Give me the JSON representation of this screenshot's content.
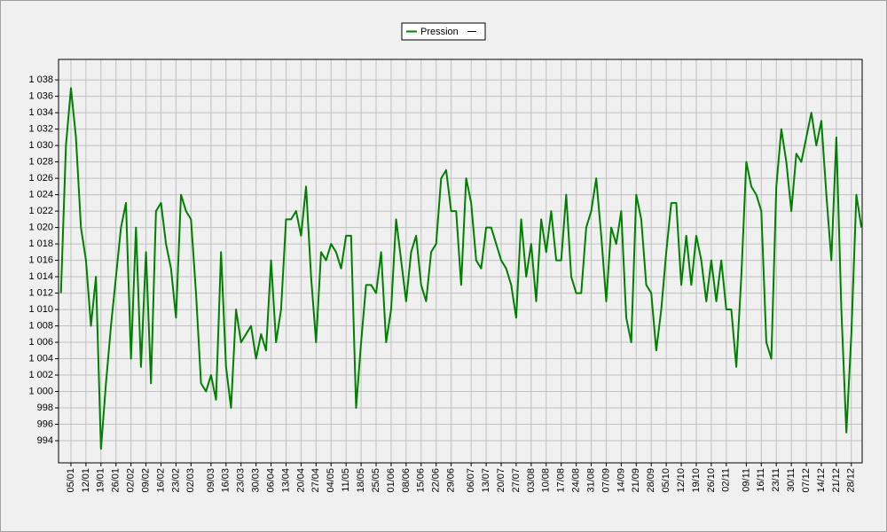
{
  "chart_data": {
    "type": "line",
    "categories": [
      null,
      null,
      "05/01",
      null,
      null,
      "12/01",
      null,
      null,
      "19/01",
      null,
      null,
      "26/01",
      null,
      null,
      "02/02",
      null,
      null,
      "09/02",
      null,
      null,
      "16/02",
      null,
      null,
      "23/02",
      null,
      null,
      "02/03",
      null,
      null,
      null,
      "09/03",
      null,
      null,
      "16/03",
      null,
      null,
      "23/03",
      null,
      null,
      "30/03",
      null,
      null,
      "06/04",
      null,
      null,
      "13/04",
      null,
      null,
      "20/04",
      null,
      null,
      "27/04",
      null,
      null,
      "04/05",
      null,
      null,
      "11/05",
      null,
      null,
      "18/05",
      null,
      null,
      "25/05",
      null,
      null,
      "01/06",
      null,
      null,
      "08/06",
      null,
      null,
      "15/06",
      null,
      null,
      "22/06",
      null,
      null,
      "29/06",
      null,
      null,
      null,
      "06/07",
      null,
      null,
      "13/07",
      null,
      null,
      "20/07",
      null,
      null,
      "27/07",
      null,
      null,
      "03/08",
      null,
      null,
      "10/08",
      null,
      null,
      "17/08",
      null,
      null,
      "24/08",
      null,
      null,
      "31/08",
      null,
      null,
      "07/09",
      null,
      null,
      "14/09",
      null,
      null,
      "21/09",
      null,
      null,
      "28/09",
      null,
      null,
      "05/10",
      null,
      null,
      "12/10",
      null,
      null,
      "19/10",
      null,
      null,
      "26/10",
      null,
      null,
      "02/11",
      null,
      null,
      null,
      "09/11",
      null,
      null,
      "16/11",
      null,
      null,
      "23/11",
      null,
      null,
      "30/11",
      null,
      null,
      "07/12",
      null,
      null,
      "14/12",
      null,
      null,
      "21/12",
      null,
      null,
      "28/12",
      null,
      null
    ],
    "series": [
      {
        "name": "Pression",
        "color": "#008000",
        "values": [
          1012,
          1030,
          1037,
          1031,
          1020,
          1016,
          1008,
          1014,
          993,
          1001,
          1008,
          1014,
          1020,
          1023,
          1004,
          1020,
          1003,
          1017,
          1001,
          1022,
          1023,
          1018,
          1015,
          1009,
          1024,
          1022,
          1021,
          1012,
          1001,
          1000,
          1002,
          999,
          1017,
          1003,
          998,
          1010,
          1006,
          1007,
          1008,
          1004,
          1007,
          1005,
          1016,
          1006,
          1010,
          1021,
          1021,
          1022,
          1019,
          1025,
          1014,
          1006,
          1017,
          1016,
          1018,
          1017,
          1015,
          1019,
          1019,
          998,
          1006,
          1013,
          1013,
          1012,
          1017,
          1006,
          1010,
          1021,
          1016,
          1011,
          1017,
          1019,
          1013,
          1011,
          1017,
          1018,
          1026,
          1027,
          1022,
          1022,
          1013,
          1026,
          1023,
          1016,
          1015,
          1020,
          1020,
          1018,
          1016,
          1015,
          1013,
          1009,
          1021,
          1014,
          1018,
          1011,
          1021,
          1017,
          1022,
          1016,
          1016,
          1024,
          1014,
          1012,
          1012,
          1020,
          1022,
          1026,
          1019,
          1011,
          1020,
          1018,
          1022,
          1009,
          1006,
          1024,
          1021,
          1013,
          1012,
          1005,
          1010,
          1017,
          1023,
          1023,
          1013,
          1019,
          1013,
          1019,
          1016,
          1011,
          1016,
          1011,
          1016,
          1010,
          1010,
          1003,
          1014,
          1028,
          1025,
          1024,
          1022,
          1006,
          1004,
          1025,
          1032,
          1028,
          1022,
          1029,
          1028,
          1031,
          1034,
          1030,
          1033,
          1024,
          1016,
          1031,
          1010,
          995,
          1007,
          1024,
          1020
        ]
      }
    ],
    "ylim": [
      991.3,
      1040.5
    ],
    "yticks": [
      994,
      996,
      998,
      {
        "value": 1000,
        "label": "1 000"
      },
      {
        "value": 1002,
        "label": "1 002"
      },
      {
        "value": 1004,
        "label": "1 004"
      },
      {
        "value": 1006,
        "label": "1 006"
      },
      {
        "value": 1008,
        "label": "1 008"
      },
      {
        "value": 1010,
        "label": "1 010"
      },
      {
        "value": 1012,
        "label": "1 012"
      },
      {
        "value": 1014,
        "label": "1 014"
      },
      {
        "value": 1016,
        "label": "1 016"
      },
      {
        "value": 1018,
        "label": "1 018"
      },
      {
        "value": 1020,
        "label": "1 020"
      },
      {
        "value": 1022,
        "label": "1 022"
      },
      {
        "value": 1024,
        "label": "1 024"
      },
      {
        "value": 1026,
        "label": "1 026"
      },
      {
        "value": 1028,
        "label": "1 028"
      },
      {
        "value": 1030,
        "label": "1 030"
      },
      {
        "value": 1032,
        "label": "1 032"
      },
      {
        "value": 1034,
        "label": "1 034"
      },
      {
        "value": 1036,
        "label": "1 036"
      },
      {
        "value": 1038,
        "label": "1 038"
      }
    ],
    "grid": true,
    "legend": "top"
  }
}
